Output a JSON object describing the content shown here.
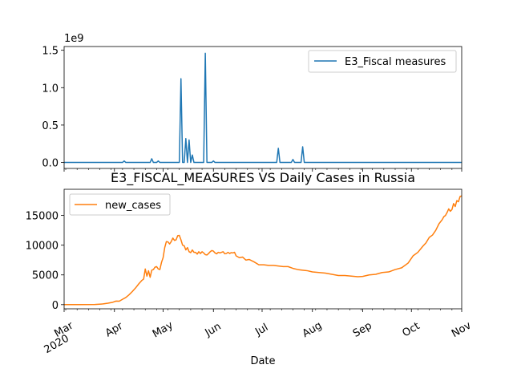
{
  "chart_data": [
    {
      "type": "line",
      "title": "",
      "xlabel": "",
      "ylabel": "",
      "scale_label": "1e9",
      "x_range": [
        "2020-03-01",
        "2020-11-01"
      ],
      "ylim": [
        -0.08,
        1.55
      ],
      "yticks": [
        0.0,
        0.5,
        1.0,
        1.5
      ],
      "ytick_labels": [
        "0.0",
        "0.5",
        "1.0",
        "1.5"
      ],
      "grid": false,
      "legend_position": "top-right",
      "series": [
        {
          "name": "E3_Fiscal measures",
          "color": "#1f77b4",
          "x": [
            "2020-03-01",
            "2020-04-06",
            "2020-04-07",
            "2020-04-08",
            "2020-04-23",
            "2020-04-24",
            "2020-04-25",
            "2020-04-27",
            "2020-04-28",
            "2020-04-29",
            "2020-05-11",
            "2020-05-12",
            "2020-05-13",
            "2020-05-14",
            "2020-05-15",
            "2020-05-16",
            "2020-05-17",
            "2020-05-18",
            "2020-05-19",
            "2020-05-20",
            "2020-05-21",
            "2020-05-22",
            "2020-05-23",
            "2020-05-24",
            "2020-05-25",
            "2020-05-26",
            "2020-05-27",
            "2020-05-28",
            "2020-05-29",
            "2020-05-30",
            "2020-05-31",
            "2020-06-01",
            "2020-06-02",
            "2020-07-10",
            "2020-07-11",
            "2020-07-12",
            "2020-07-19",
            "2020-07-20",
            "2020-07-21",
            "2020-07-25",
            "2020-07-26",
            "2020-07-27",
            "2020-11-01"
          ],
          "values": [
            0,
            0,
            0.02,
            0,
            0,
            0.05,
            0,
            0,
            0.02,
            0,
            0,
            1.12,
            0,
            0,
            0.32,
            0,
            0.3,
            0,
            0.1,
            0,
            0,
            0,
            0,
            0,
            0,
            0,
            1.46,
            0,
            0,
            0,
            0,
            0.02,
            0,
            0,
            0.19,
            0,
            0,
            0.04,
            0,
            0,
            0.21,
            0,
            0
          ]
        }
      ]
    },
    {
      "type": "line",
      "title": "E3_FISCAL_MEASURES VS Daily Cases in Russia",
      "xlabel": "Date",
      "ylabel": "",
      "x_range": [
        "2020-03-01",
        "2020-11-01"
      ],
      "ylim": [
        -700,
        19400
      ],
      "yticks": [
        0,
        5000,
        10000,
        15000
      ],
      "ytick_labels": [
        "0",
        "5000",
        "10000",
        "15000"
      ],
      "xtick_dates": [
        "2020-03-01",
        "2020-04-01",
        "2020-05-01",
        "2020-06-01",
        "2020-07-01",
        "2020-08-01",
        "2020-09-01",
        "2020-10-01",
        "2020-11-01"
      ],
      "xtick_labels": [
        "Mar",
        "Apr",
        "May",
        "Jun",
        "Jul",
        "Aug",
        "Sep",
        "Oct",
        "Nov"
      ],
      "xtick_year_label": "2020",
      "grid": false,
      "legend_position": "top-left",
      "series": [
        {
          "name": "new_cases",
          "color": "#ff7f0e",
          "x": [
            "2020-03-01",
            "2020-03-10",
            "2020-03-20",
            "2020-03-25",
            "2020-03-28",
            "2020-03-31",
            "2020-04-02",
            "2020-04-04",
            "2020-04-06",
            "2020-04-08",
            "2020-04-10",
            "2020-04-12",
            "2020-04-14",
            "2020-04-16",
            "2020-04-18",
            "2020-04-19",
            "2020-04-20",
            "2020-04-21",
            "2020-04-22",
            "2020-04-23",
            "2020-04-24",
            "2020-04-25",
            "2020-04-26",
            "2020-04-27",
            "2020-04-28",
            "2020-04-29",
            "2020-04-30",
            "2020-05-01",
            "2020-05-02",
            "2020-05-03",
            "2020-05-04",
            "2020-05-05",
            "2020-05-06",
            "2020-05-07",
            "2020-05-08",
            "2020-05-09",
            "2020-05-10",
            "2020-05-11",
            "2020-05-12",
            "2020-05-13",
            "2020-05-14",
            "2020-05-15",
            "2020-05-16",
            "2020-05-17",
            "2020-05-18",
            "2020-05-19",
            "2020-05-20",
            "2020-05-21",
            "2020-05-22",
            "2020-05-23",
            "2020-05-24",
            "2020-05-25",
            "2020-05-26",
            "2020-05-27",
            "2020-05-28",
            "2020-05-29",
            "2020-05-30",
            "2020-05-31",
            "2020-06-01",
            "2020-06-02",
            "2020-06-03",
            "2020-06-04",
            "2020-06-05",
            "2020-06-06",
            "2020-06-07",
            "2020-06-08",
            "2020-06-09",
            "2020-06-10",
            "2020-06-11",
            "2020-06-12",
            "2020-06-13",
            "2020-06-14",
            "2020-06-15",
            "2020-06-17",
            "2020-06-19",
            "2020-06-21",
            "2020-06-23",
            "2020-06-26",
            "2020-06-29",
            "2020-07-02",
            "2020-07-05",
            "2020-07-08",
            "2020-07-11",
            "2020-07-14",
            "2020-07-17",
            "2020-07-20",
            "2020-07-23",
            "2020-07-26",
            "2020-07-29",
            "2020-08-01",
            "2020-08-05",
            "2020-08-09",
            "2020-08-13",
            "2020-08-17",
            "2020-08-21",
            "2020-08-25",
            "2020-08-29",
            "2020-09-01",
            "2020-09-05",
            "2020-09-09",
            "2020-09-13",
            "2020-09-17",
            "2020-09-21",
            "2020-09-25",
            "2020-09-29",
            "2020-10-02",
            "2020-10-05",
            "2020-10-08",
            "2020-10-10",
            "2020-10-12",
            "2020-10-14",
            "2020-10-16",
            "2020-10-18",
            "2020-10-20",
            "2020-10-21",
            "2020-10-22",
            "2020-10-23",
            "2020-10-24",
            "2020-10-25",
            "2020-10-26",
            "2020-10-27",
            "2020-10-28",
            "2020-10-29",
            "2020-10-30",
            "2020-10-31",
            "2020-11-01"
          ],
          "values": [
            0,
            5,
            30,
            120,
            250,
            400,
            600,
            580,
            900,
            1200,
            1650,
            2200,
            2800,
            3500,
            4100,
            4300,
            6000,
            4800,
            5700,
            4600,
            5800,
            5900,
            6300,
            6400,
            6000,
            5900,
            7100,
            7900,
            9600,
            10600,
            10550,
            10200,
            10600,
            11200,
            10800,
            10900,
            11600,
            11650,
            10900,
            10000,
            9900,
            9200,
            9600,
            8900,
            8750,
            9200,
            8800,
            8800,
            8500,
            8900,
            8600,
            8900,
            8700,
            8400,
            8350,
            8600,
            8900,
            9100,
            9000,
            8700,
            8550,
            8800,
            8700,
            8800,
            8900,
            8550,
            8600,
            8800,
            8600,
            8750,
            8700,
            8800,
            8200,
            7900,
            8000,
            7500,
            7600,
            7200,
            6700,
            6700,
            6600,
            6600,
            6500,
            6400,
            6400,
            6100,
            5900,
            5800,
            5700,
            5500,
            5400,
            5300,
            5100,
            4900,
            4900,
            4800,
            4700,
            4750,
            5000,
            5100,
            5400,
            5500,
            5900,
            6200,
            7000,
            8200,
            8800,
            9800,
            10400,
            11300,
            11700,
            12500,
            13600,
            14300,
            14800,
            15000,
            15500,
            16100,
            15700,
            16000,
            17000,
            16500,
            17500,
            17300,
            18200,
            18300
          ]
        }
      ]
    }
  ]
}
